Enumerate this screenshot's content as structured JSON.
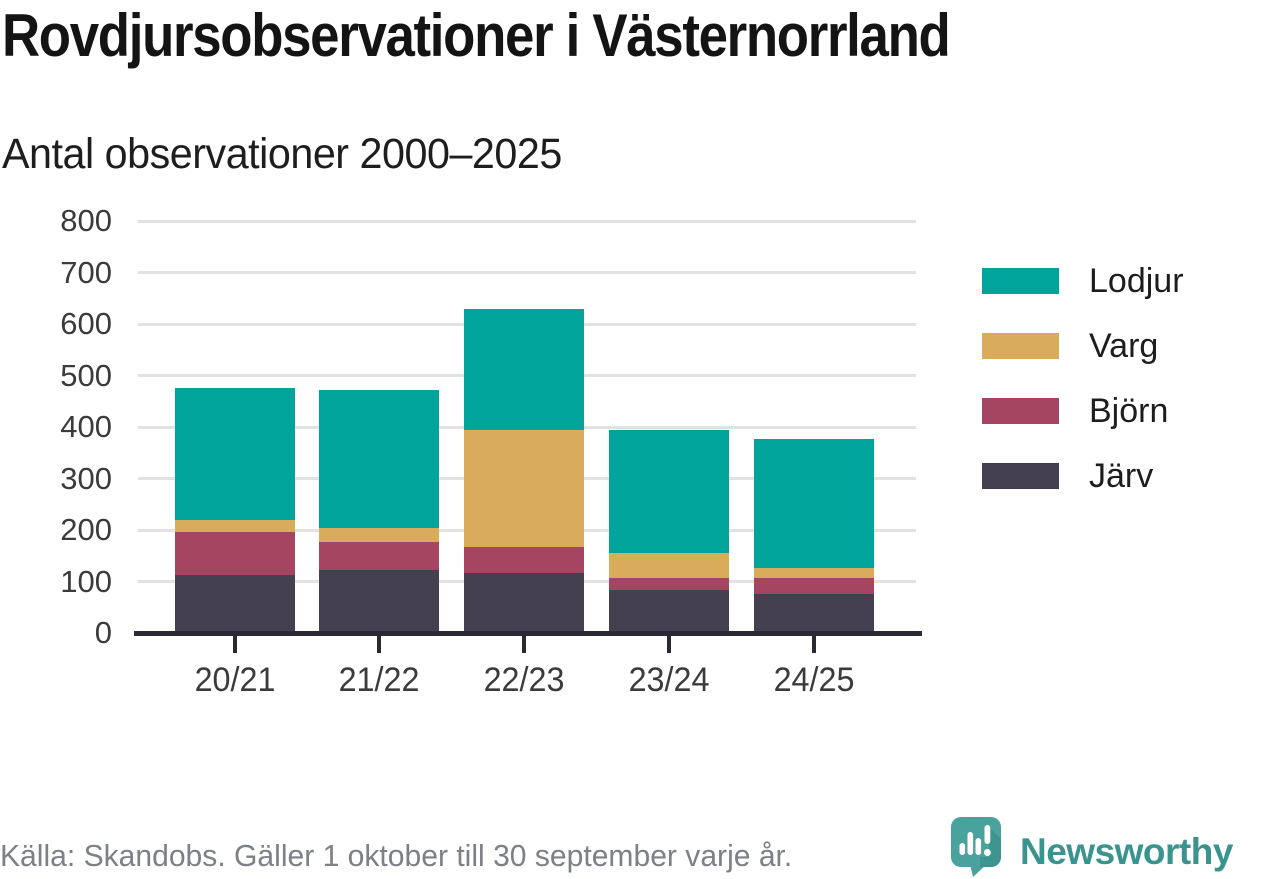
{
  "header": {
    "title": "Rovdjursobservationer i Västernorrland",
    "subtitle": "Antal observationer 2000–2025"
  },
  "chart_data": {
    "type": "bar",
    "stacked": true,
    "title": "Rovdjursobservationer i Västernorrland",
    "subtitle": "Antal observationer 2000–2025",
    "categories": [
      "20/21",
      "21/22",
      "22/23",
      "23/24",
      "24/25"
    ],
    "series": [
      {
        "name": "Järv",
        "color": "#454050",
        "values": [
          113,
          123,
          117,
          83,
          75
        ]
      },
      {
        "name": "Björn",
        "color": "#a64562",
        "values": [
          83,
          53,
          50,
          23,
          31
        ]
      },
      {
        "name": "Varg",
        "color": "#d9ac5c",
        "values": [
          24,
          27,
          228,
          50,
          21
        ]
      },
      {
        "name": "Lodjur",
        "color": "#00a49b",
        "values": [
          255,
          269,
          235,
          239,
          250
        ]
      }
    ],
    "stack_totals": [
      475,
      472,
      630,
      395,
      377
    ],
    "xlabel": "",
    "ylabel": "",
    "ylim": [
      0,
      800
    ],
    "yticks": [
      0,
      100,
      200,
      300,
      400,
      500,
      600,
      700,
      800
    ],
    "grid": true,
    "legend_position": "right",
    "legend_order": [
      "Lodjur",
      "Varg",
      "Björn",
      "Järv"
    ]
  },
  "footer": {
    "source": "Källa: Skandobs. Gäller 1 oktober till 30 september varje år.",
    "brand": "Newsworthy"
  },
  "icons": {
    "logo": "newsworthy-speech-bubble-bar-chart-icon"
  },
  "colors": {
    "lodjur": "#00a49b",
    "varg": "#d9ac5c",
    "bjorn": "#a64562",
    "jarv": "#454050",
    "axis": "#2b2933",
    "gridline": "#e2e2e2",
    "brand_teal": "#3a938f",
    "source_gray": "#7d8086"
  }
}
